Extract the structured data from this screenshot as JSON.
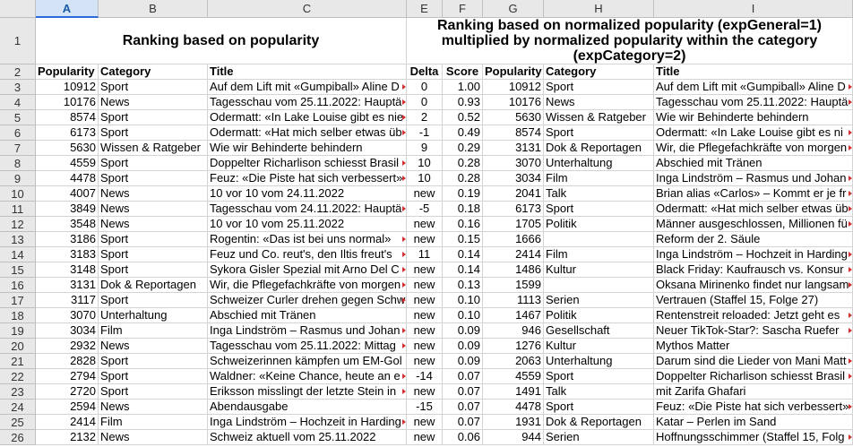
{
  "columns": [
    "A",
    "B",
    "C",
    "E",
    "F",
    "G",
    "H",
    "I"
  ],
  "selected_column": "A",
  "header_titles": {
    "left": "Ranking based on popularity",
    "right": "Ranking based on normalized popularity (expGeneral=1) multiplied by normalized popularity within the category (expCategory=2)"
  },
  "header_row": {
    "A": "Popularity",
    "B": "Category",
    "C": "Title",
    "E": "Delta",
    "F": "Score",
    "G": "Popularity",
    "H": "Category",
    "I": "Title"
  },
  "rows": [
    {
      "n": "3",
      "A": "10912",
      "B": "Sport",
      "C": "Auf dem Lift mit «Gumpiball» Aline D",
      "E": "0",
      "F": "1.00",
      "G": "10912",
      "H": "Sport",
      "I": "Auf dem Lift mit «Gumpiball» Aline D"
    },
    {
      "n": "4",
      "A": "10176",
      "B": "News",
      "C": "Tagesschau vom 25.11.2022: Hauptä",
      "E": "0",
      "F": "0.93",
      "G": "10176",
      "H": "News",
      "I": "Tagesschau vom 25.11.2022: Hauptä"
    },
    {
      "n": "5",
      "A": "8574",
      "B": "Sport",
      "C": "Odermatt: «In Lake Louise gibt es nie",
      "E": "2",
      "F": "0.52",
      "G": "5630",
      "H": "Wissen & Ratgeber",
      "I": "Wie wir Behinderte behindern"
    },
    {
      "n": "6",
      "A": "6173",
      "B": "Sport",
      "C": "Odermatt: «Hat mich selber etwas üb",
      "E": "-1",
      "F": "0.49",
      "G": "8574",
      "H": "Sport",
      "I": "Odermatt: «In Lake Louise gibt es ni"
    },
    {
      "n": "7",
      "A": "5630",
      "B": "Wissen & Ratgeber",
      "C": "Wie wir Behinderte behindern",
      "E": "9",
      "F": "0.29",
      "G": "3131",
      "H": "Dok & Reportagen",
      "I": "Wir, die Pflegefachkräfte von morgen"
    },
    {
      "n": "8",
      "A": "4559",
      "B": "Sport",
      "C": "Doppelter Richarlison schiesst Brasil",
      "E": "10",
      "F": "0.28",
      "G": "3070",
      "H": "Unterhaltung",
      "I": "Abschied mit Tränen"
    },
    {
      "n": "9",
      "A": "4478",
      "B": "Sport",
      "C": "Feuz: «Die Piste hat sich verbessert»",
      "E": "10",
      "F": "0.28",
      "G": "3034",
      "H": "Film",
      "I": "Inga Lindström – Rasmus und Johan"
    },
    {
      "n": "10",
      "A": "4007",
      "B": "News",
      "C": "10 vor 10 vom 24.11.2022",
      "E": "new",
      "F": "0.19",
      "G": "2041",
      "H": "Talk",
      "I": "Brian alias «Carlos» – Kommt er je fr"
    },
    {
      "n": "11",
      "A": "3849",
      "B": "News",
      "C": "Tagesschau vom 24.11.2022: Hauptä",
      "E": "-5",
      "F": "0.18",
      "G": "6173",
      "H": "Sport",
      "I": "Odermatt: «Hat mich selber etwas üb"
    },
    {
      "n": "12",
      "A": "3548",
      "B": "News",
      "C": "10 vor 10 vom 25.11.2022",
      "E": "new",
      "F": "0.16",
      "G": "1705",
      "H": "Politik",
      "I": "Männer ausgeschlossen, Millionen fü"
    },
    {
      "n": "13",
      "A": "3186",
      "B": "Sport",
      "C": "Rogentin: «Das ist bei uns normal»",
      "E": "new",
      "F": "0.15",
      "G": "1666",
      "H": "",
      "I": "Reform der 2. Säule"
    },
    {
      "n": "14",
      "A": "3183",
      "B": "Sport",
      "C": "Feuz und Co. reut's, den Iltis freut's",
      "E": "11",
      "F": "0.14",
      "G": "2414",
      "H": "Film",
      "I": "Inga Lindström – Hochzeit in Harding"
    },
    {
      "n": "15",
      "A": "3148",
      "B": "Sport",
      "C": "Sykora Gisler Spezial mit Arno Del C",
      "E": "new",
      "F": "0.14",
      "G": "1486",
      "H": "Kultur",
      "I": "Black Friday: Kaufrausch vs. Konsur"
    },
    {
      "n": "16",
      "A": "3131",
      "B": "Dok & Reportagen",
      "C": "Wir, die Pflegefachkräfte von morgen",
      "E": "new",
      "F": "0.13",
      "G": "1599",
      "H": "",
      "I": "Oksana Mirinenko findet nur langsam"
    },
    {
      "n": "17",
      "A": "3117",
      "B": "Sport",
      "C": "Schweizer Curler drehen gegen Schw",
      "E": "new",
      "F": "0.10",
      "G": "1113",
      "H": "Serien",
      "I": "Vertrauen (Staffel 15, Folge 27)"
    },
    {
      "n": "18",
      "A": "3070",
      "B": "Unterhaltung",
      "C": "Abschied mit Tränen",
      "E": "new",
      "F": "0.10",
      "G": "1467",
      "H": "Politik",
      "I": "Rentenstreit reloaded: Jetzt geht es"
    },
    {
      "n": "19",
      "A": "3034",
      "B": "Film",
      "C": "Inga Lindström – Rasmus und Johan",
      "E": "new",
      "F": "0.09",
      "G": "946",
      "H": "Gesellschaft",
      "I": "Neuer TikTok-Star?: Sascha Ruefer"
    },
    {
      "n": "20",
      "A": "2932",
      "B": "News",
      "C": "Tagesschau vom 25.11.2022: Mittag",
      "E": "new",
      "F": "0.09",
      "G": "1276",
      "H": "Kultur",
      "I": "Mythos Matter"
    },
    {
      "n": "21",
      "A": "2828",
      "B": "Sport",
      "C": "Schweizerinnen kämpfen um EM-Gol",
      "E": "new",
      "F": "0.09",
      "G": "2063",
      "H": "Unterhaltung",
      "I": "Darum sind die Lieder von Mani Matt"
    },
    {
      "n": "22",
      "A": "2794",
      "B": "Sport",
      "C": "Waldner: «Keine Chance, heute an e",
      "E": "-14",
      "F": "0.07",
      "G": "4559",
      "H": "Sport",
      "I": "Doppelter Richarlison schiesst Brasil"
    },
    {
      "n": "23",
      "A": "2720",
      "B": "Sport",
      "C": "Eriksson misslingt der letzte Stein in",
      "E": "new",
      "F": "0.07",
      "G": "1491",
      "H": "Talk",
      "I": "mit Zarifa Ghafari"
    },
    {
      "n": "24",
      "A": "2594",
      "B": "News",
      "C": "Abendausgabe",
      "E": "-15",
      "F": "0.07",
      "G": "4478",
      "H": "Sport",
      "I": "Feuz: «Die Piste hat sich verbessert»"
    },
    {
      "n": "25",
      "A": "2414",
      "B": "Film",
      "C": "Inga Lindström – Hochzeit in Harding",
      "E": "new",
      "F": "0.07",
      "G": "1931",
      "H": "Dok & Reportagen",
      "I": "Katar – Perlen im Sand"
    },
    {
      "n": "26",
      "A": "2132",
      "B": "News",
      "C": "Schweiz aktuell vom 25.11.2022",
      "E": "new",
      "F": "0.06",
      "G": "944",
      "H": "Serien",
      "I": "Hoffnungsschimmer (Staffel 15, Folg"
    }
  ]
}
